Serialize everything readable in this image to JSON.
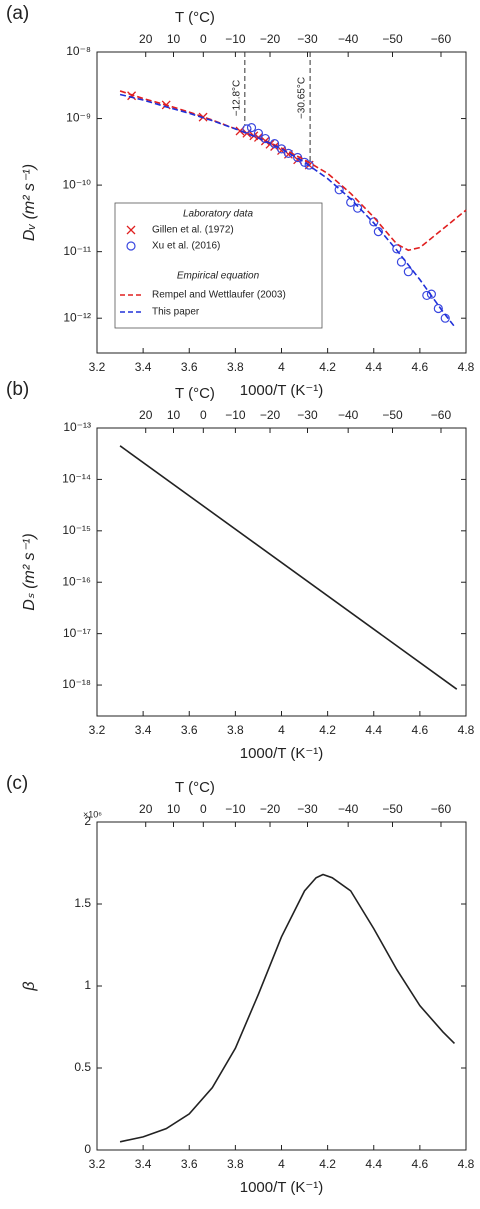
{
  "chart_data": [
    {
      "type": "line",
      "panel_label": "(a)",
      "top_axis_label": "T (°C)",
      "xlabel": "1000/T (K⁻¹)",
      "ylabel": "Dᵥ (m² s⁻¹)",
      "xlim": [
        3.2,
        4.8
      ],
      "xticks": [
        3.2,
        3.4,
        3.6,
        3.8,
        4,
        4.2,
        4.4,
        4.6,
        4.8
      ],
      "top_ticks": [
        20,
        10,
        0,
        {
          "value": -10,
          "label": "−10"
        },
        {
          "value": -20,
          "label": "−20"
        },
        {
          "value": -30,
          "label": "−30"
        },
        {
          "value": -40,
          "label": "−40"
        },
        {
          "value": -50,
          "label": "−50"
        },
        {
          "value": -60,
          "label": "−60"
        }
      ],
      "ylog": true,
      "ylim": [
        3e-13,
        1e-08
      ],
      "yticks": [
        {
          "value": 1e-08,
          "label": "10⁻⁸"
        },
        {
          "value": 1e-09,
          "label": "10⁻⁹"
        },
        {
          "value": 1e-10,
          "label": "10⁻¹⁰"
        },
        {
          "value": 1e-11,
          "label": "10⁻¹¹"
        },
        {
          "value": 1e-12,
          "label": "10⁻¹²"
        }
      ],
      "vlines": [
        {
          "value": 3.841,
          "label": "−12.8°C"
        },
        {
          "value": 4.124,
          "label": "−30.65°C"
        }
      ],
      "legend_headers": [
        "Laboratory data",
        "Empirical equation"
      ],
      "series": [
        {
          "name": "Gillen et al. (1972)",
          "color": "#e02020",
          "style": "markers",
          "marker": "x",
          "x": [
            3.35,
            3.5,
            3.66,
            3.82,
            3.85,
            3.88,
            3.9,
            3.93,
            3.95,
            3.97,
            4.0,
            4.03,
            4.07,
            4.12
          ],
          "values": [
            2.2e-09,
            1.6e-09,
            1.05e-09,
            6.5e-10,
            6e-10,
            5.5e-10,
            5.2e-10,
            4.6e-10,
            4.1e-10,
            3.8e-10,
            3.3e-10,
            2.9e-10,
            2.4e-10,
            2e-10
          ]
        },
        {
          "name": "Xu et al. (2016)",
          "color": "#3a48e0",
          "style": "markers",
          "marker": "o",
          "x": [
            3.85,
            3.87,
            3.9,
            3.93,
            3.97,
            4.0,
            4.03,
            4.07,
            4.1,
            4.12,
            4.25,
            4.3,
            4.33,
            4.4,
            4.42,
            4.5,
            4.52,
            4.55,
            4.63,
            4.65,
            4.68,
            4.71
          ],
          "values": [
            7e-10,
            7.3e-10,
            6e-10,
            5e-10,
            4.2e-10,
            3.5e-10,
            3e-10,
            2.6e-10,
            2.2e-10,
            2e-10,
            8.5e-11,
            5.5e-11,
            4.5e-11,
            2.8e-11,
            2e-11,
            1.1e-11,
            7e-12,
            5e-12,
            2.2e-12,
            2.3e-12,
            1.4e-12,
            1e-12
          ]
        },
        {
          "name": "Rempel and Wettlaufer (2003)",
          "color": "#e02020",
          "style": "dashed",
          "x": [
            3.3,
            3.4,
            3.5,
            3.6,
            3.7,
            3.8,
            3.9,
            4.0,
            4.1,
            4.2,
            4.3,
            4.4,
            4.5,
            4.55,
            4.6,
            4.7,
            4.8
          ],
          "values": [
            2.6e-09,
            2e-09,
            1.6e-09,
            1.25e-09,
            9.5e-10,
            7e-10,
            5.2e-10,
            3.6e-10,
            2.4e-10,
            1.5e-10,
            7.5e-11,
            3.3e-11,
            1.3e-11,
            1.05e-11,
            1.15e-11,
            2.2e-11,
            4.2e-11
          ]
        },
        {
          "name": "This paper",
          "color": "#2030d8",
          "style": "dashed",
          "x": [
            3.3,
            3.4,
            3.5,
            3.6,
            3.7,
            3.8,
            3.9,
            4.0,
            4.1,
            4.2,
            4.3,
            4.4,
            4.5,
            4.6,
            4.7,
            4.75
          ],
          "values": [
            2.3e-09,
            1.9e-09,
            1.5e-09,
            1.2e-09,
            9.3e-10,
            7e-10,
            5.1e-10,
            3.5e-10,
            2.2e-10,
            1.25e-10,
            6.2e-11,
            2.7e-11,
            1.05e-11,
            3.8e-12,
            1.25e-12,
            7.5e-13
          ]
        }
      ]
    },
    {
      "type": "line",
      "panel_label": "(b)",
      "top_axis_label": "T (°C)",
      "xlabel": "1000/T (K⁻¹)",
      "ylabel": "Dₛ (m² s⁻¹)",
      "xlim": [
        3.2,
        4.8
      ],
      "xticks": [
        3.2,
        3.4,
        3.6,
        3.8,
        4,
        4.2,
        4.4,
        4.6,
        4.8
      ],
      "top_ticks": [
        20,
        10,
        0,
        {
          "value": -10,
          "label": "−10"
        },
        {
          "value": -20,
          "label": "−20"
        },
        {
          "value": -30,
          "label": "−30"
        },
        {
          "value": -40,
          "label": "−40"
        },
        {
          "value": -50,
          "label": "−50"
        },
        {
          "value": -60,
          "label": "−60"
        }
      ],
      "ylog": true,
      "ylim": [
        2.5e-19,
        1e-13
      ],
      "yticks": [
        {
          "value": 1e-13,
          "label": "10⁻¹³"
        },
        {
          "value": 1e-14,
          "label": "10⁻¹⁴"
        },
        {
          "value": 1e-15,
          "label": "10⁻¹⁵"
        },
        {
          "value": 1e-16,
          "label": "10⁻¹⁶"
        },
        {
          "value": 1e-17,
          "label": "10⁻¹⁷"
        },
        {
          "value": 1e-18,
          "label": "10⁻¹⁸"
        }
      ],
      "series": [
        {
          "color": "#222222",
          "style": "solid",
          "x": [
            3.3,
            4.76
          ],
          "values": [
            4.5e-14,
            8.3e-19
          ]
        }
      ]
    },
    {
      "type": "line",
      "panel_label": "(c)",
      "top_axis_label": "T (°C)",
      "xlabel": "1000/T (K⁻¹)",
      "ylabel": "β",
      "y_multiplier": "×10⁶",
      "xlim": [
        3.2,
        4.8
      ],
      "xticks": [
        3.2,
        3.4,
        3.6,
        3.8,
        4,
        4.2,
        4.4,
        4.6,
        4.8
      ],
      "top_ticks": [
        20,
        10,
        0,
        {
          "value": -10,
          "label": "−10"
        },
        {
          "value": -20,
          "label": "−20"
        },
        {
          "value": -30,
          "label": "−30"
        },
        {
          "value": -40,
          "label": "−40"
        },
        {
          "value": -50,
          "label": "−50"
        },
        {
          "value": -60,
          "label": "−60"
        }
      ],
      "ylog": false,
      "ylim": [
        0,
        2
      ],
      "yticks": [
        0,
        0.5,
        1,
        1.5,
        2
      ],
      "series": [
        {
          "color": "#222222",
          "style": "solid",
          "x": [
            3.3,
            3.4,
            3.5,
            3.6,
            3.7,
            3.8,
            3.9,
            4.0,
            4.1,
            4.15,
            4.18,
            4.22,
            4.3,
            4.4,
            4.5,
            4.6,
            4.7,
            4.75
          ],
          "values": [
            0.05,
            0.08,
            0.13,
            0.22,
            0.38,
            0.62,
            0.95,
            1.3,
            1.58,
            1.66,
            1.68,
            1.66,
            1.58,
            1.35,
            1.1,
            0.88,
            0.72,
            0.65
          ]
        }
      ]
    }
  ]
}
